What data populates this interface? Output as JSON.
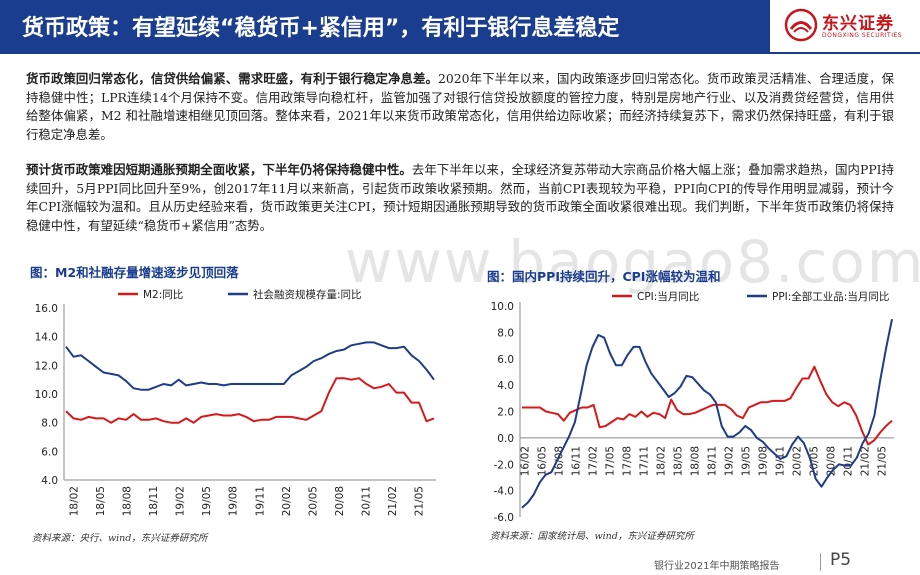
{
  "header": {
    "title": "货币政策：有望延续“稳货币+紧信用”，有利于银行息差稳定",
    "logo_text": "东兴证券",
    "logo_sub": "DONGXING SECURITIES"
  },
  "para1": {
    "bold": "货币政策回归常态化，信贷供给偏紧、需求旺盛，有利于银行稳定净息差。",
    "text": "2020年下半年以来，国内政策逐步回归常态化。货币政策灵活精准、合理适度，保持稳健中性；LPR连续14个月保持不变。信用政策导向稳杠杆，监管加强了对银行信贷投放额度的管控力度，特别是房地产行业、以及消费贷经营贷，信用供给整体偏紧，M2 和社融增速相继见顶回落。整体来看，2021年以来货币政策常态化，信用供给边际收紧；而经济持续复苏下，需求仍然保持旺盛，有利于银行稳定净息差。"
  },
  "para2": {
    "bold": "预计货币政策难因短期通胀预期全面收紧，下半年仍将保持稳健中性。",
    "text": "去年下半年以来，全球经济复苏带动大宗商品价格大幅上涨；叠加需求趋热，国内PPI持续回升，5月PPI同比回升至9%，创2017年11月以来新高，引起货币政策收紧预期。然而，当前CPI表现较为平稳，PPI向CPI的传导作用明显减弱，预计今年CPI涨幅较为温和。且从历史经验来看，货币政策更关注CPI，预计短期因通胀预期导致的货币政策全面收紧很难出现。我们判断，下半年货币政策仍将保持稳健中性，有望延续“稳货币+紧信用”态势。"
  },
  "figures": {
    "fig1_title": "图：M2和社融存量增速逐步见顶回落",
    "fig2_title": "图：国内PPI持续回升，CPI涨幅较为温和",
    "src1": "资料来源：央行、wind，东兴证券研究所",
    "src2": "资料来源：国家统计局、wind，东兴证券研究所"
  },
  "watermark": "www.baogao8.com",
  "footer": {
    "report": "银行业2021年中期策略报告",
    "page": "P5"
  },
  "colors": {
    "primary": "#1b3d8f",
    "red": "#d7191c",
    "blue": "#1f3c88",
    "logo_red": "#c8151b"
  },
  "chart_data": [
    {
      "type": "line",
      "x_ticks": [
        "18/02",
        "18/05",
        "18/08",
        "18/11",
        "19/02",
        "19/05",
        "19/08",
        "19/11",
        "20/02",
        "20/05",
        "20/08",
        "20/11",
        "21/02",
        "21/05"
      ],
      "ylim": [
        4.0,
        16.0
      ],
      "y_ticks": [
        "4.0",
        "6.0",
        "8.0",
        "10.0",
        "12.0",
        "14.0",
        "16.0"
      ],
      "legend": "top",
      "series": [
        {
          "name": "M2:同比",
          "color": "#d7191c",
          "values": [
            8.8,
            8.3,
            8.2,
            8.4,
            8.3,
            8.3,
            8.0,
            8.3,
            8.2,
            8.6,
            8.2,
            8.2,
            8.3,
            8.1,
            8.0,
            8.0,
            8.3,
            8.0,
            8.4,
            8.5,
            8.6,
            8.5,
            8.5,
            8.6,
            8.4,
            8.1,
            8.2,
            8.2,
            8.4,
            8.4,
            8.4,
            8.3,
            8.2,
            8.5,
            8.8,
            10.1,
            11.1,
            11.1,
            11.0,
            11.1,
            10.7,
            10.4,
            10.5,
            10.7,
            10.1,
            10.1,
            9.4,
            9.4,
            8.1,
            8.3
          ]
        },
        {
          "name": "社会融资规模存量:同比",
          "color": "#1f3c88",
          "values": [
            13.3,
            12.6,
            12.7,
            12.3,
            11.9,
            11.5,
            11.4,
            11.3,
            10.9,
            10.4,
            10.3,
            10.3,
            10.5,
            10.7,
            10.6,
            11.0,
            10.6,
            10.7,
            10.8,
            10.7,
            10.7,
            10.6,
            10.7,
            10.7,
            10.7,
            10.7,
            10.7,
            10.7,
            10.7,
            10.7,
            11.3,
            11.6,
            11.9,
            12.3,
            12.5,
            12.8,
            13.0,
            13.1,
            13.4,
            13.5,
            13.6,
            13.6,
            13.4,
            13.2,
            13.2,
            13.3,
            12.7,
            12.3,
            11.7,
            11.0
          ]
        }
      ]
    },
    {
      "type": "line",
      "x_ticks": [
        "16/02",
        "16/05",
        "16/08",
        "16/11",
        "17/02",
        "17/05",
        "17/08",
        "17/11",
        "18/02",
        "18/05",
        "18/08",
        "18/11",
        "19/02",
        "19/05",
        "19/08",
        "19/11",
        "20/02",
        "20/05",
        "20/08",
        "20/11",
        "21/02",
        "21/05"
      ],
      "ylim": [
        -6.0,
        10.0
      ],
      "y_ticks": [
        "-6.0",
        "-4.0",
        "-2.0",
        "0.0",
        "2.0",
        "4.0",
        "6.0",
        "8.0",
        "10.0"
      ],
      "legend": "top",
      "series": [
        {
          "name": "CPI:当月同比",
          "color": "#d7191c",
          "values": [
            2.3,
            2.3,
            2.3,
            2.3,
            2.0,
            1.9,
            1.8,
            1.3,
            1.9,
            2.1,
            2.3,
            2.3,
            2.5,
            0.8,
            0.9,
            1.2,
            1.5,
            1.4,
            1.8,
            1.6,
            2.0,
            1.6,
            1.9,
            1.8,
            1.5,
            2.9,
            2.1,
            1.8,
            1.8,
            1.9,
            2.1,
            2.3,
            2.5,
            2.5,
            2.5,
            2.2,
            1.7,
            1.5,
            2.3,
            2.5,
            2.7,
            2.7,
            2.8,
            2.8,
            2.8,
            3.0,
            3.8,
            4.5,
            4.5,
            5.4,
            4.3,
            3.3,
            2.7,
            2.4,
            2.7,
            2.5,
            1.7,
            0.5,
            -0.5,
            -0.2,
            0.4,
            0.9,
            1.3
          ]
        },
        {
          "name": "PPI:全部工业品:当月同比",
          "color": "#1f3c88",
          "values": [
            -5.3,
            -4.9,
            -4.3,
            -3.4,
            -2.8,
            -2.6,
            -1.7,
            -0.8,
            0.1,
            1.2,
            3.3,
            5.5,
            6.9,
            7.8,
            7.6,
            6.4,
            5.5,
            5.5,
            6.3,
            6.9,
            6.9,
            5.8,
            4.9,
            4.3,
            3.7,
            3.1,
            3.4,
            3.9,
            4.7,
            4.6,
            4.1,
            3.6,
            3.3,
            2.7,
            0.9,
            0.1,
            0.1,
            0.4,
            0.9,
            0.6,
            0.0,
            -0.3,
            -0.8,
            -1.2,
            -1.6,
            -1.4,
            -0.5,
            0.1,
            -0.4,
            -1.5,
            -3.1,
            -3.7,
            -3.0,
            -2.4,
            -2.0,
            -2.1,
            -2.1,
            -1.5,
            -0.4,
            0.3,
            1.7,
            4.4,
            6.8,
            9.0
          ]
        }
      ]
    }
  ]
}
